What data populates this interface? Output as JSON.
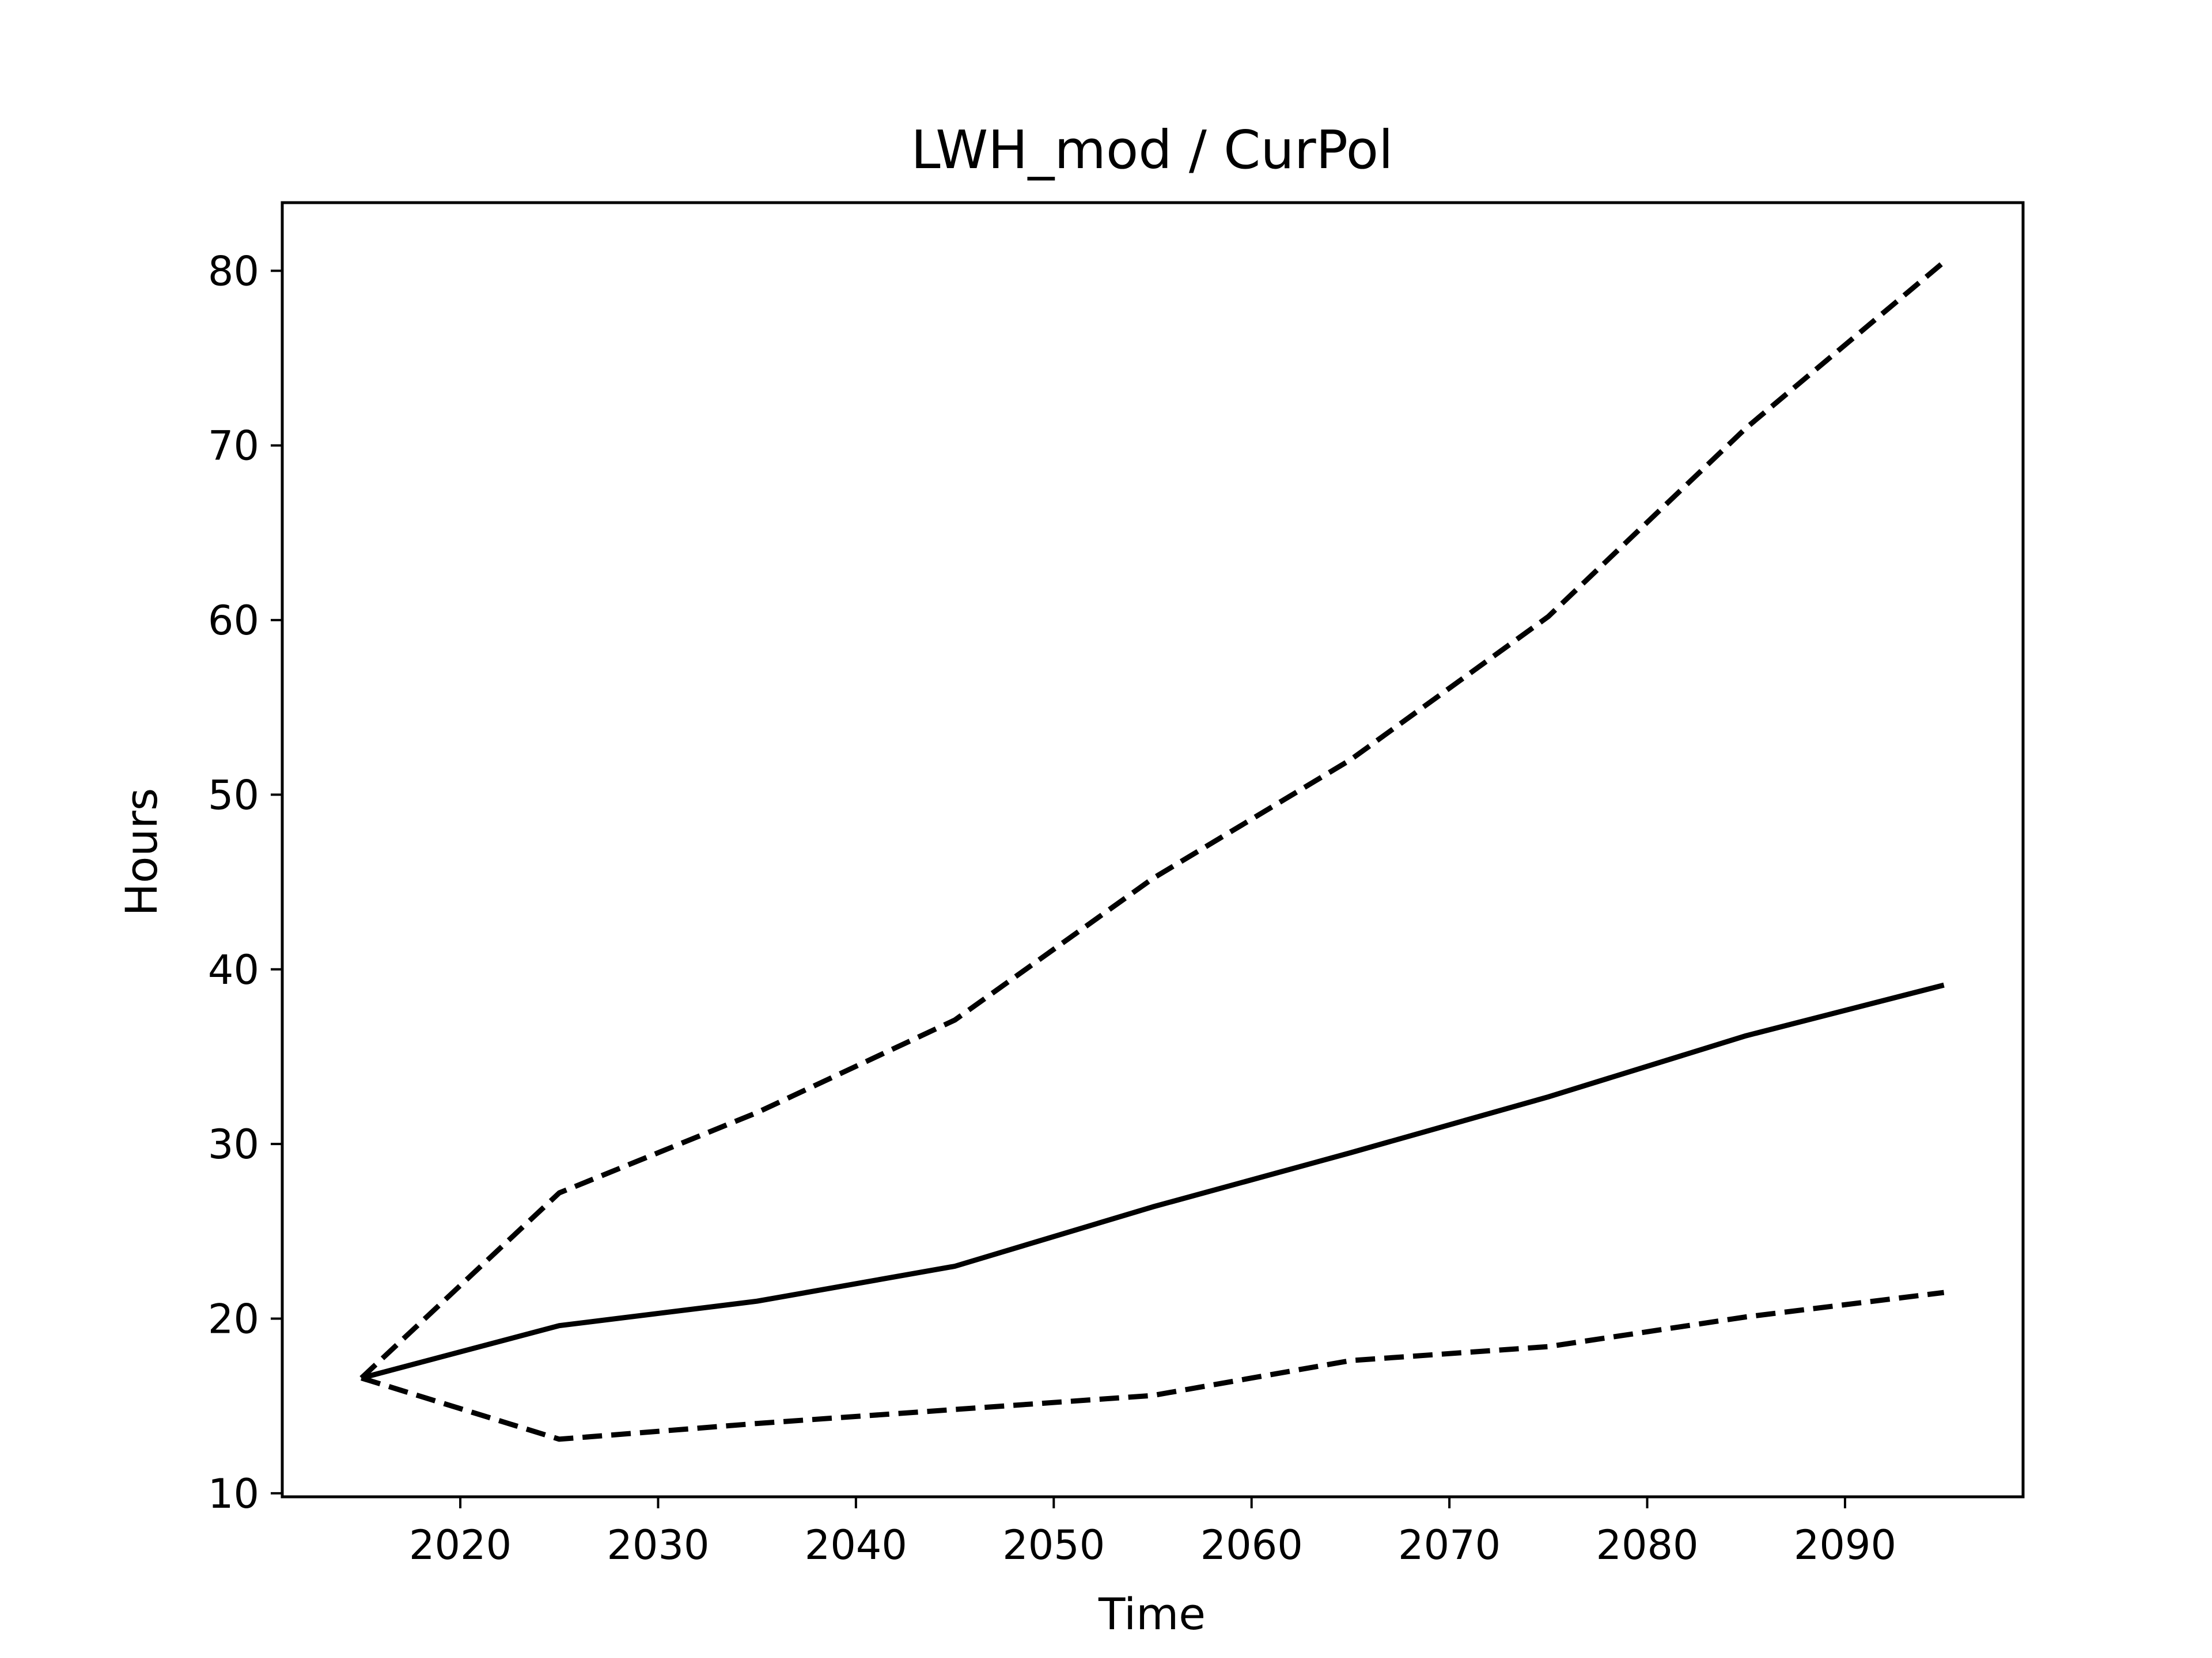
{
  "chart_data": {
    "type": "line",
    "title": "LWH_mod / CurPol",
    "xlabel": "Time",
    "ylabel": "Hours",
    "xlim": [
      2011,
      2099
    ],
    "ylim": [
      9.8,
      83.9
    ],
    "xticks": [
      2020,
      2030,
      2040,
      2050,
      2060,
      2070,
      2080,
      2090
    ],
    "yticks": [
      10,
      20,
      30,
      40,
      50,
      60,
      70,
      80
    ],
    "grid": false,
    "legend": "none",
    "x": [
      2015,
      2025,
      2035,
      2045,
      2055,
      2065,
      2075,
      2085,
      2095
    ],
    "series": [
      {
        "style": "dashed",
        "color": "#000000",
        "values": [
          16.6,
          27.2,
          31.8,
          37.1,
          45.2,
          52.0,
          60.2,
          71.0,
          80.5
        ]
      },
      {
        "style": "solid",
        "color": "#000000",
        "values": [
          16.6,
          19.6,
          21.0,
          23.0,
          26.4,
          29.5,
          32.7,
          36.2,
          39.1
        ]
      },
      {
        "style": "dashed",
        "color": "#000000",
        "values": [
          16.6,
          13.1,
          14.0,
          14.8,
          15.6,
          17.6,
          18.4,
          20.1,
          21.5
        ]
      }
    ]
  }
}
